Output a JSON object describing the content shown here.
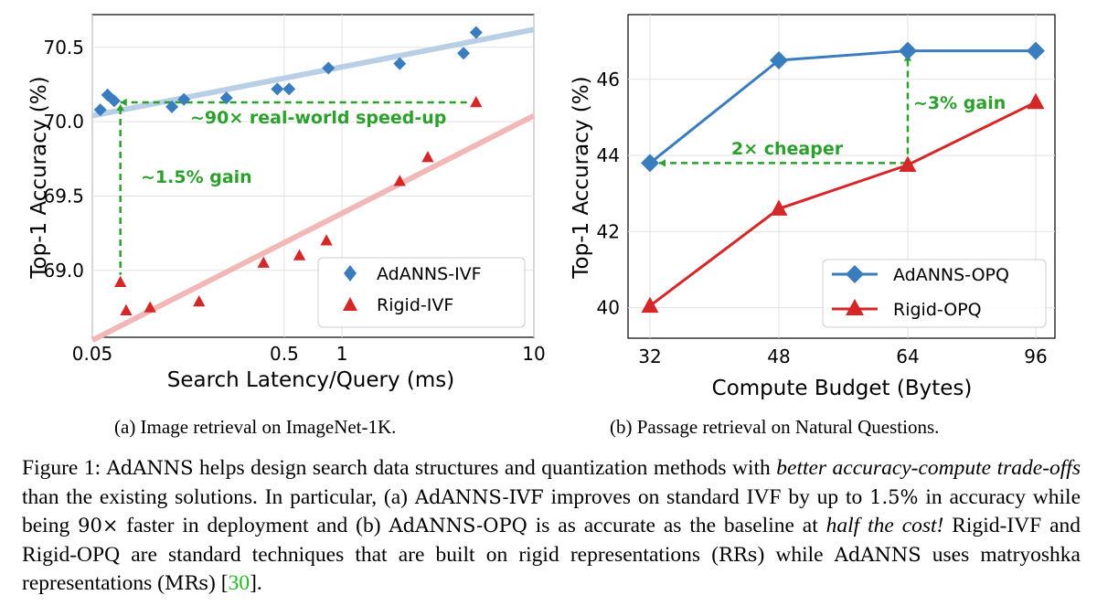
{
  "chart_data": [
    {
      "type": "scatter",
      "id": "a",
      "xscale": "log",
      "xlabel": "Search Latency/Query (ms)",
      "ylabel": "Top-1 Accuracy (%)",
      "xlim": [
        0.05,
        10
      ],
      "ylim": [
        68.55,
        70.72
      ],
      "xticks": [
        0.05,
        0.5,
        1,
        10
      ],
      "xtick_labels": [
        "0.05",
        "0.5",
        "1",
        "10"
      ],
      "yticks": [
        69.0,
        69.5,
        70.0,
        70.5
      ],
      "ytick_labels": [
        "69.0",
        "69.5",
        "70.0",
        "70.5"
      ],
      "grid": true,
      "legend_position": "bottom-right",
      "series": [
        {
          "name": "AdANNS-IVF",
          "marker": "diamond",
          "color": "#3a7dbf",
          "trend_color": "#b8cfe6",
          "trend_line": {
            "x": [
              0.05,
              10
            ],
            "y": [
              70.04,
              70.62
            ]
          },
          "x": [
            0.055,
            0.06,
            0.065,
            0.13,
            0.15,
            0.25,
            0.46,
            0.53,
            0.85,
            2.0,
            4.3,
            5.0
          ],
          "y": [
            70.08,
            70.18,
            70.14,
            70.1,
            70.15,
            70.16,
            70.22,
            70.22,
            70.36,
            70.39,
            70.46,
            70.6
          ]
        },
        {
          "name": "Rigid-IVF",
          "marker": "triangle",
          "color": "#d62728",
          "trend_color": "#f2b8b8",
          "trend_line": {
            "x": [
              0.05,
              10
            ],
            "y": [
              68.53,
              70.04
            ]
          },
          "x": [
            0.07,
            0.075,
            0.1,
            0.18,
            0.39,
            0.6,
            0.83,
            2.0,
            2.8,
            5.0
          ],
          "y": [
            68.92,
            68.73,
            68.75,
            68.79,
            69.05,
            69.1,
            69.2,
            69.6,
            69.76,
            70.13
          ]
        }
      ],
      "annotations": [
        {
          "text": "~90× real-world speed-up",
          "color": "#2ca02c"
        },
        {
          "text": "~1.5% gain",
          "color": "#2ca02c"
        }
      ]
    },
    {
      "type": "line",
      "id": "b",
      "xlabel": "Compute Budget (Bytes)",
      "ylabel": "Top-1 Accuracy (%)",
      "categories": [
        "32",
        "48",
        "64",
        "96"
      ],
      "ylim": [
        39.2,
        47.7
      ],
      "yticks": [
        40,
        42,
        44,
        46
      ],
      "ytick_labels": [
        "40",
        "42",
        "44",
        "46"
      ],
      "grid": true,
      "legend_position": "bottom-right",
      "series": [
        {
          "name": "AdANNS-OPQ",
          "marker": "diamond",
          "color": "#3a7dbf",
          "values": [
            43.8,
            46.5,
            46.75,
            46.75
          ]
        },
        {
          "name": "Rigid-OPQ",
          "marker": "triangle",
          "color": "#d62728",
          "values": [
            40.05,
            42.6,
            43.75,
            45.4
          ]
        }
      ],
      "annotations": [
        {
          "text": "2× cheaper",
          "color": "#2ca02c"
        },
        {
          "text": "~3% gain",
          "color": "#2ca02c"
        }
      ]
    }
  ],
  "subcaptions": {
    "a": "(a) Image retrieval on ImageNet-1K.",
    "b": "(b) Passage retrieval on Natural Questions."
  },
  "caption": {
    "p1": "Figure 1: ",
    "s1": "AdANNS",
    "p2": " helps design search data structures and quantization methods with ",
    "i1": "better accuracy-compute trade-offs",
    "p3": " than the existing solutions. In particular, (a) ",
    "s2": "AdANNS-IVF",
    "p4": " improves on standard IVF by up to ",
    "s3": "1.5%",
    "p5": " in accuracy while being ",
    "s4": "90×",
    "p6": " faster in deployment and (b) ",
    "s5": "AdANNS-OPQ",
    "p7": " is as accurate as the baseline at ",
    "i2": "half the cost!",
    "p8": " Rigid-IVF and Rigid-OPQ are standard techniques that are built on rigid representations (",
    "s6": "RRs",
    "p9": ") while ",
    "s7": "AdANNS",
    "p10": " uses matryoshka representations (",
    "s8": "MRs",
    "p11": ") [",
    "cite": "30",
    "p12": "]."
  }
}
